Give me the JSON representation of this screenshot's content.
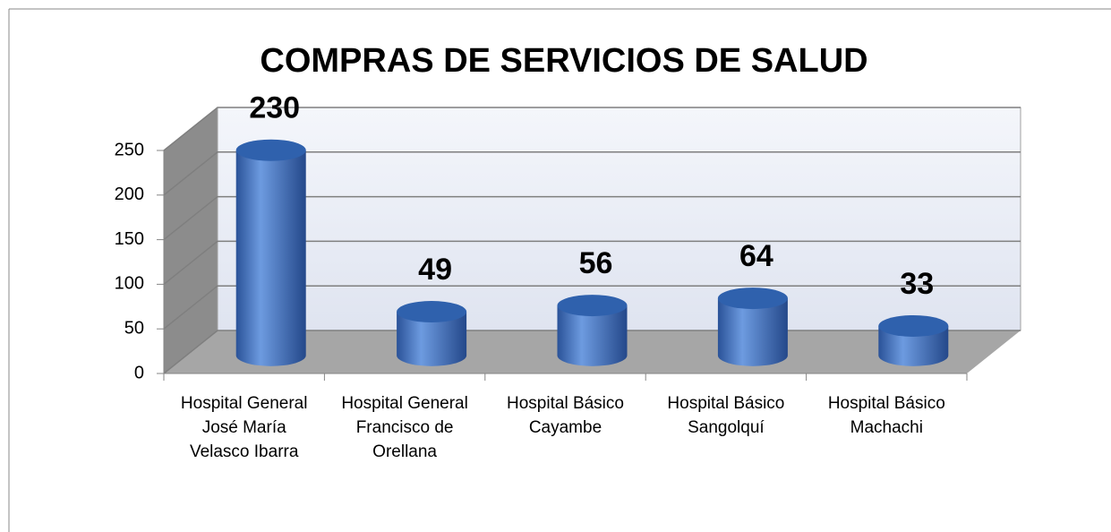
{
  "chart_data": {
    "type": "bar3d",
    "title": "COMPRAS DE SERVICIOS DE SALUD",
    "categories": [
      "Hospital General José María Velasco Ibarra",
      "Hospital General Francisco de Orellana",
      "Hospital Básico Cayambe",
      "Hospital Básico Sangolquí",
      "Hospital Básico Machachi"
    ],
    "values": [
      230,
      49,
      56,
      64,
      33
    ],
    "color": "#3f75c1",
    "ylim": [
      0,
      250
    ],
    "yticks": [
      0,
      50,
      100,
      150,
      200,
      250
    ],
    "grid": true
  }
}
